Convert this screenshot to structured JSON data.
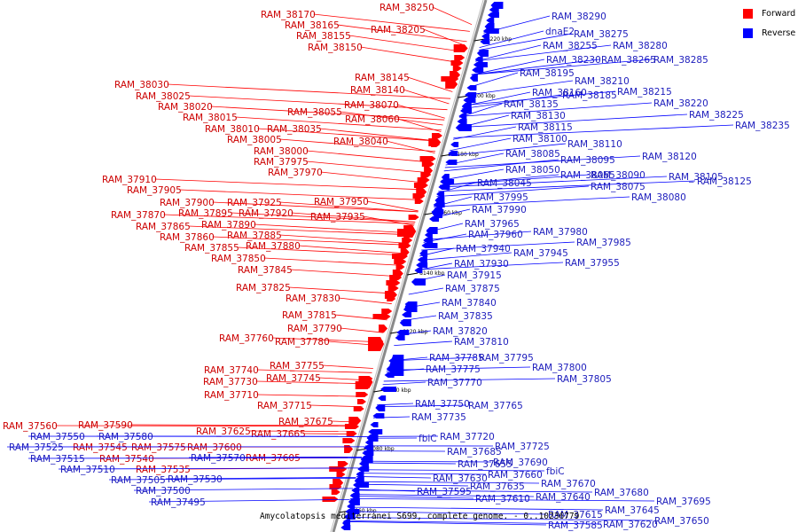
{
  "colors": {
    "forward": "#ff0000",
    "reverse": "#0000ff",
    "axis": "#808080",
    "label_forward": "#cc0000",
    "label_reverse": "#1c1cbc"
  },
  "legend": [
    {
      "label": "Forward",
      "color": "#ff0000"
    },
    {
      "label": "Reverse",
      "color": "#0000ff"
    }
  ],
  "caption": "Amycolatopsis mediterranei S699, complete genome. - 0..10236779",
  "scale_ticks": [
    "8220 kbp",
    "8200 kbp",
    "8180 kbp",
    "8160 kbp",
    "8140 kbp",
    "8120 kbp",
    "8100 kbp",
    "8080 kbp",
    "8060 kbp"
  ],
  "forward_labels": [
    "RAM_38250",
    "RAM_38170",
    "RAM_38165",
    "RAM_38205",
    "RAM_38155",
    "RAM_38150",
    "RAM_38145",
    "RAM_38140",
    "RAM_38030",
    "RAM_38025",
    "RAM_38020",
    "RAM_38070",
    "RAM_38055",
    "RAM_38015",
    "RAM_38060",
    "RAM_38010",
    "RAM_38035",
    "RAM_38005",
    "RAM_38040",
    "RAM_38000",
    "RAM_37975",
    "RAM_37970",
    "RAM_37910",
    "RAM_37905",
    "RAM_37925",
    "RAM_37950",
    "RAM_37900",
    "RAM_37895",
    "RAM_37920",
    "RAM_37870",
    "RAM_37935",
    "RAM_37890",
    "RAM_37865",
    "RAM_37885",
    "RAM_37860",
    "RAM_37880",
    "RAM_37855",
    "RAM_37850",
    "RAM_37845",
    "RAM_37825",
    "RAM_37830",
    "RAM_37815",
    "RAM_37790",
    "RAM_37760",
    "RAM_37780",
    "RAM_37755",
    "RAM_37740",
    "RAM_37745",
    "RAM_37730",
    "RAM_37710",
    "RAM_37715",
    "RAM_37675",
    "RAM_37560",
    "RAM_37590",
    "RAM_37625",
    "RAM_37665",
    "RAM_37545",
    "RAM_37575",
    "RAM_37600",
    "RAM_37605",
    "RAM_37540",
    "RAM_37535"
  ],
  "reverse_labels": [
    "RAM_38290",
    "dnaE2",
    "RAM_38275",
    "RAM_38255",
    "RAM_38280",
    "RAM_38230",
    "RAM_38265",
    "RAM_38285",
    "RAM_38195",
    "RAM_38210",
    "RAM_38160",
    "RAM_38185",
    "RAM_38215",
    "RAM_38135",
    "RAM_38220",
    "RAM_38130",
    "RAM_38225",
    "RAM_38115",
    "RAM_38235",
    "RAM_38100",
    "RAM_38110",
    "RAM_38085",
    "RAM_38120",
    "RAM_38095",
    "RAM_38050",
    "RAM_38065",
    "RAM_38090",
    "RAM_38105",
    "RAM_38125",
    "RAM_38045",
    "RAM_38075",
    "RAM_38080",
    "RAM_37995",
    "RAM_37990",
    "RAM_37965",
    "RAM_37980",
    "RAM_37960",
    "RAM_37985",
    "RAM_37940",
    "RAM_37945",
    "RAM_37930",
    "RAM_37955",
    "RAM_37915",
    "RAM_37875",
    "RAM_37840",
    "RAM_37835",
    "RAM_37820",
    "RAM_37810",
    "RAM_37785",
    "RAM_37795",
    "RAM_37775",
    "RAM_37800",
    "RAM_37805",
    "RAM_37770",
    "RAM_37750",
    "RAM_37765",
    "RAM_37735",
    "RAM_37720",
    "fbiC",
    "RAM_37725",
    "RAM_37685",
    "RAM_37690",
    "RAM_37655",
    "RAM_37660",
    "fbiC",
    "RAM_37630",
    "RAM_37670",
    "RAM_37635",
    "RAM_37640",
    "RAM_37595",
    "RAM_37610",
    "RAM_37680",
    "RAM_37695",
    "RAM_37645",
    "RAM_37615",
    "RAM_37650",
    "RAM_37585",
    "RAM_37620",
    "RAM_37550",
    "RAM_37580",
    "RAM_37525",
    "RAM_37570",
    "RAM_37515",
    "RAM_37510",
    "RAM_37530",
    "RAM_37505",
    "RAM_37500",
    "RAM_37495"
  ]
}
